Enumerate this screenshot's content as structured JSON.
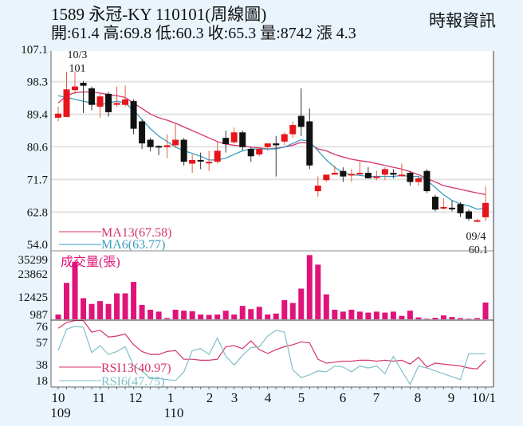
{
  "header": {
    "title": "1589  永冠-KY 110101(周線圖)",
    "stats": "開:61.4 高:69.8 低:60.3 收:65.3 量:8742 漲 4.3",
    "source": "時報資訊"
  },
  "colors": {
    "up": "#e8141b",
    "down": "#111111",
    "ma13": "#d6336c",
    "ma6": "#3a9fc0",
    "volume": "#e0137a",
    "rsi13": "#d6336c",
    "rsi6": "#7fbfc9",
    "grid": "#e2e2e2",
    "background": "#e9f4fc"
  },
  "chart_data": [
    {
      "type": "candlestick",
      "title": "1589 永冠-KY 110101(周線圖)",
      "ylim": [
        54.0,
        107.1
      ],
      "yticks": [
        "107.1",
        "98.3",
        "89.4",
        "80.6",
        "71.7",
        "62.8",
        "54.0"
      ],
      "annotations": [
        {
          "label": "10/3",
          "value": "101",
          "type": "high"
        },
        {
          "label": "09/4",
          "value": "60.1",
          "type": "low"
        }
      ],
      "legend": [
        {
          "name": "MA13",
          "value": "MA13(67.58)"
        },
        {
          "name": "MA6",
          "value": "MA6(63.77)"
        }
      ],
      "candles": [
        {
          "o": 88.5,
          "h": 91.5,
          "l": 87.5,
          "c": 89.6
        },
        {
          "o": 88.7,
          "h": 101.0,
          "l": 88.7,
          "c": 96.2
        },
        {
          "o": 96.0,
          "h": 101.0,
          "l": 95.0,
          "c": 97.0
        },
        {
          "o": 98.0,
          "h": 98.5,
          "l": 89.8,
          "c": 97.2
        },
        {
          "o": 96.5,
          "h": 97.0,
          "l": 90.5,
          "c": 92.0
        },
        {
          "o": 91.5,
          "h": 95.0,
          "l": 88.5,
          "c": 94.3
        },
        {
          "o": 95.0,
          "h": 95.5,
          "l": 88.8,
          "c": 90.0
        },
        {
          "o": 92.0,
          "h": 97.0,
          "l": 91.5,
          "c": 92.5
        },
        {
          "o": 92.0,
          "h": 97.2,
          "l": 91.5,
          "c": 93.5
        },
        {
          "o": 93.0,
          "h": 93.5,
          "l": 84.0,
          "c": 85.5
        },
        {
          "o": 87.5,
          "h": 88.0,
          "l": 80.0,
          "c": 81.5
        },
        {
          "o": 82.5,
          "h": 83.0,
          "l": 79.3,
          "c": 80.5
        },
        {
          "o": 80.8,
          "h": 81.0,
          "l": 78.3,
          "c": 80.5
        },
        {
          "o": 80.5,
          "h": 84.0,
          "l": 77.5,
          "c": 81.0
        },
        {
          "o": 81.0,
          "h": 86.8,
          "l": 80.3,
          "c": 82.5
        },
        {
          "o": 82.5,
          "h": 83.0,
          "l": 75.5,
          "c": 76.5
        },
        {
          "o": 76.0,
          "h": 78.5,
          "l": 73.5,
          "c": 77.0
        },
        {
          "o": 77.0,
          "h": 79.0,
          "l": 74.5,
          "c": 76.8
        },
        {
          "o": 76.5,
          "h": 79.5,
          "l": 74.0,
          "c": 76.5
        },
        {
          "o": 76.5,
          "h": 82.0,
          "l": 76.0,
          "c": 79.5
        },
        {
          "o": 83.0,
          "h": 85.0,
          "l": 79.0,
          "c": 81.3
        },
        {
          "o": 81.8,
          "h": 85.8,
          "l": 81.5,
          "c": 84.5
        },
        {
          "o": 84.5,
          "h": 85.0,
          "l": 79.5,
          "c": 80.5
        },
        {
          "o": 80.0,
          "h": 80.5,
          "l": 76.5,
          "c": 78.0
        },
        {
          "o": 78.5,
          "h": 80.5,
          "l": 78.0,
          "c": 80.0
        },
        {
          "o": 80.5,
          "h": 81.5,
          "l": 79.5,
          "c": 81.5
        },
        {
          "o": 81.5,
          "h": 83.5,
          "l": 72.5,
          "c": 81.0
        },
        {
          "o": 82.0,
          "h": 84.5,
          "l": 81.0,
          "c": 84.0
        },
        {
          "o": 84.0,
          "h": 87.5,
          "l": 83.0,
          "c": 86.5
        },
        {
          "o": 89.0,
          "h": 96.5,
          "l": 83.5,
          "c": 86.0
        },
        {
          "o": 87.5,
          "h": 91.0,
          "l": 74.5,
          "c": 75.5
        },
        {
          "o": 68.5,
          "h": 72.5,
          "l": 67.0,
          "c": 70.0
        },
        {
          "o": 71.5,
          "h": 73.0,
          "l": 71.0,
          "c": 73.0
        },
        {
          "o": 73.0,
          "h": 75.5,
          "l": 73.0,
          "c": 73.5
        },
        {
          "o": 74.0,
          "h": 75.0,
          "l": 71.0,
          "c": 72.5
        },
        {
          "o": 73.0,
          "h": 74.5,
          "l": 71.0,
          "c": 73.2
        },
        {
          "o": 73.5,
          "h": 76.5,
          "l": 73.0,
          "c": 73.5
        },
        {
          "o": 73.5,
          "h": 75.0,
          "l": 72.5,
          "c": 72.0
        },
        {
          "o": 72.5,
          "h": 74.0,
          "l": 71.5,
          "c": 72.5
        },
        {
          "o": 73.0,
          "h": 75.0,
          "l": 71.5,
          "c": 74.5
        },
        {
          "o": 73.5,
          "h": 74.5,
          "l": 72.0,
          "c": 73.0
        },
        {
          "o": 73.0,
          "h": 76.0,
          "l": 72.5,
          "c": 73.0
        },
        {
          "o": 73.5,
          "h": 74.0,
          "l": 70.0,
          "c": 71.0
        },
        {
          "o": 71.0,
          "h": 72.5,
          "l": 70.0,
          "c": 72.0
        },
        {
          "o": 74.0,
          "h": 74.5,
          "l": 68.0,
          "c": 68.5
        },
        {
          "o": 67.0,
          "h": 67.5,
          "l": 63.0,
          "c": 63.5
        },
        {
          "o": 64.0,
          "h": 66.5,
          "l": 63.5,
          "c": 64.2
        },
        {
          "o": 64.0,
          "h": 66.0,
          "l": 63.0,
          "c": 63.8
        },
        {
          "o": 65.0,
          "h": 65.5,
          "l": 61.5,
          "c": 62.5
        },
        {
          "o": 63.0,
          "h": 63.5,
          "l": 60.5,
          "c": 61.0
        },
        {
          "o": 60.5,
          "h": 61.0,
          "l": 60.1,
          "c": 60.6
        },
        {
          "o": 61.4,
          "h": 69.8,
          "l": 60.3,
          "c": 65.3
        }
      ],
      "ma13": [
        92.5,
        94.5,
        95.3,
        95.5,
        95.5,
        95.2,
        94.8,
        94.5,
        94.0,
        92.5,
        91.0,
        89.5,
        88.5,
        87.8,
        87.0,
        86.0,
        85.0,
        84.0,
        83.0,
        82.0,
        81.3,
        81.0,
        80.8,
        80.5,
        80.3,
        80.0,
        80.2,
        80.5,
        81.0,
        81.8,
        81.5,
        80.0,
        79.5,
        78.5,
        77.8,
        77.2,
        76.8,
        76.5,
        76.0,
        75.5,
        75.0,
        74.5,
        73.8,
        73.0,
        72.0,
        71.0,
        70.0,
        69.5,
        69.0,
        68.5,
        68.0,
        67.58
      ],
      "ma6": [
        94.5,
        94.0,
        93.5,
        93.0,
        92.5,
        92.0,
        92.5,
        93.0,
        92.5,
        90.5,
        88.0,
        85.5,
        83.5,
        82.0,
        80.5,
        79.5,
        78.8,
        78.0,
        77.0,
        77.0,
        77.5,
        78.5,
        79.5,
        80.0,
        80.0,
        80.0,
        80.0,
        80.5,
        81.5,
        82.5,
        82.0,
        79.5,
        77.0,
        75.0,
        73.5,
        73.0,
        72.8,
        72.5,
        72.5,
        72.5,
        72.5,
        72.8,
        72.5,
        72.5,
        71.5,
        69.5,
        67.5,
        66.0,
        65.0,
        64.5,
        63.6,
        63.77
      ]
    },
    {
      "type": "bar",
      "title": "成交量(張)",
      "yticks": [
        "35299",
        "23862",
        "12425",
        "987"
      ],
      "values": [
        2500,
        19000,
        30000,
        11000,
        8000,
        9500,
        8000,
        13500,
        13500,
        19500,
        7500,
        5000,
        4000,
        600,
        5000,
        4500,
        4200,
        2500,
        2300,
        2500,
        4500,
        2500,
        7000,
        5300,
        6500,
        2500,
        3000,
        10000,
        8500,
        16000,
        33500,
        28500,
        13000,
        5000,
        4000,
        5000,
        4000,
        3500,
        4000,
        3500,
        4000,
        1800,
        4500,
        1000,
        300,
        800,
        2000,
        1200,
        600,
        300,
        600,
        8742
      ],
      "ylim": [
        0,
        35299
      ]
    },
    {
      "type": "line",
      "title": "RSI",
      "yticks": [
        "76",
        "57",
        "38",
        "18"
      ],
      "ylim": [
        15,
        80
      ],
      "series": [
        {
          "name": "RSI13(40.97)",
          "values": [
            74,
            80,
            82,
            82,
            70,
            72,
            65,
            66,
            68,
            57,
            50,
            47,
            47,
            50,
            51,
            42,
            42,
            41,
            41,
            42,
            55,
            56,
            53,
            61,
            52,
            48,
            52,
            55,
            57,
            60,
            59,
            42,
            38,
            39,
            40,
            40,
            41,
            41,
            40,
            41,
            40,
            41,
            37,
            44,
            34,
            38,
            37,
            36,
            35,
            33,
            32,
            40.97
          ]
        },
        {
          "name": "RSI6(47.75)",
          "values": [
            51,
            73,
            76,
            75,
            49,
            56,
            47,
            50,
            55,
            35,
            30,
            22,
            22,
            21,
            20,
            29,
            51,
            53,
            47,
            64,
            45,
            36,
            46,
            54,
            55,
            66,
            72,
            70,
            31,
            23,
            26,
            30,
            29,
            35,
            34,
            29,
            35,
            33,
            35,
            27,
            45,
            30,
            16,
            35,
            33,
            30,
            27,
            24,
            21,
            47.75,
            47.75,
            47.75
          ]
        }
      ],
      "xticks": [
        "10",
        "11",
        "12",
        "1",
        "2",
        "3",
        "4",
        "5",
        "6",
        "7",
        "8",
        "9",
        "10/1"
      ],
      "year_labels": [
        {
          "at": "10",
          "label": "109"
        },
        {
          "at": "1",
          "label": "110"
        }
      ]
    }
  ]
}
